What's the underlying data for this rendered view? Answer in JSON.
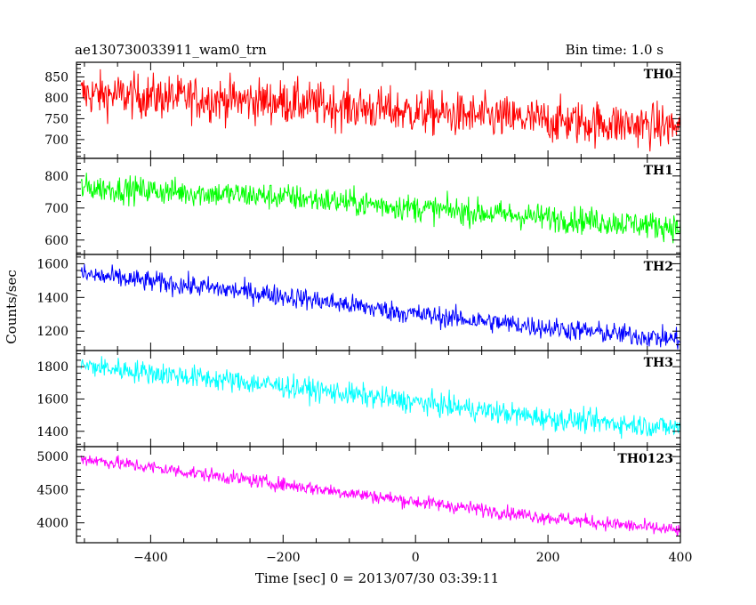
{
  "chart_data": {
    "type": "line",
    "title": "ae130730033911_wam0_trn",
    "subtitle": "Bin time: 1.0 s",
    "xlabel": "Time [sec] 0 = 2013/07/30 03:39:11",
    "ylabel": "Counts/sec",
    "xlim": [
      -512,
      400
    ],
    "xticks": [
      -400,
      -200,
      0,
      200,
      400
    ],
    "x_step": 1.0,
    "grid": false,
    "panels": [
      {
        "name": "TH0",
        "color": "#ff0000",
        "ylim": [
          655,
          885
        ],
        "yticks": [
          700,
          750,
          800,
          850
        ],
        "trend": [
          {
            "x": -512,
            "y": 810
          },
          {
            "x": -200,
            "y": 790
          },
          {
            "x": 0,
            "y": 765
          },
          {
            "x": 200,
            "y": 745
          },
          {
            "x": 400,
            "y": 730
          }
        ],
        "noise": 38
      },
      {
        "name": "TH1",
        "color": "#00ff00",
        "ylim": [
          555,
          855
        ],
        "yticks": [
          600,
          700,
          800
        ],
        "trend": [
          {
            "x": -512,
            "y": 765
          },
          {
            "x": -200,
            "y": 735
          },
          {
            "x": 0,
            "y": 700
          },
          {
            "x": 200,
            "y": 670
          },
          {
            "x": 400,
            "y": 640
          }
        ],
        "noise": 30
      },
      {
        "name": "TH2",
        "color": "#0000ff",
        "ylim": [
          1085,
          1655
        ],
        "yticks": [
          1200,
          1400,
          1600
        ],
        "trend": [
          {
            "x": -512,
            "y": 1540
          },
          {
            "x": -200,
            "y": 1410
          },
          {
            "x": 0,
            "y": 1300
          },
          {
            "x": 200,
            "y": 1220
          },
          {
            "x": 400,
            "y": 1150
          }
        ],
        "noise": 45
      },
      {
        "name": "TH3",
        "color": "#00ffff",
        "ylim": [
          1305,
          1900
        ],
        "yticks": [
          1400,
          1600,
          1800
        ],
        "trend": [
          {
            "x": -512,
            "y": 1810
          },
          {
            "x": -200,
            "y": 1680
          },
          {
            "x": 0,
            "y": 1580
          },
          {
            "x": 200,
            "y": 1480
          },
          {
            "x": 400,
            "y": 1420
          }
        ],
        "noise": 50
      },
      {
        "name": "TH0123",
        "color": "#ff00ff",
        "ylim": [
          3700,
          5150
        ],
        "yticks": [
          4000,
          4500,
          5000
        ],
        "trend": [
          {
            "x": -512,
            "y": 4980
          },
          {
            "x": -200,
            "y": 4580
          },
          {
            "x": 0,
            "y": 4320
          },
          {
            "x": 200,
            "y": 4080
          },
          {
            "x": 400,
            "y": 3880
          }
        ],
        "noise": 75
      }
    ]
  }
}
